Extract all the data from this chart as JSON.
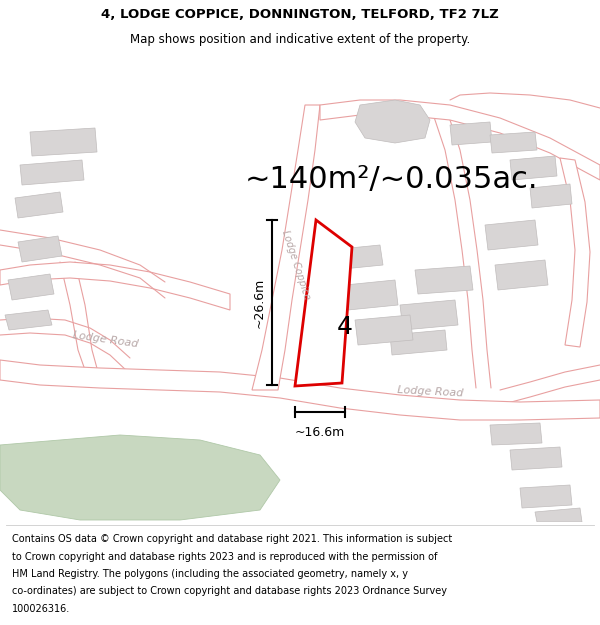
{
  "title_line1": "4, LODGE COPPICE, DONNINGTON, TELFORD, TF2 7LZ",
  "title_line2": "Map shows position and indicative extent of the property.",
  "area_text": "~140m²/~0.035ac.",
  "dim_height": "~26.6m",
  "dim_width": "~16.6m",
  "property_number": "4",
  "footer_lines": [
    "Contains OS data © Crown copyright and database right 2021. This information is subject",
    "to Crown copyright and database rights 2023 and is reproduced with the permission of",
    "HM Land Registry. The polygons (including the associated geometry, namely x, y",
    "co-ordinates) are subject to Crown copyright and database rights 2023 Ordnance Survey",
    "100026316."
  ],
  "map_bg": "#f7f2f2",
  "road_color": "#e8a0a0",
  "road_fill": "#ffffff",
  "plot_edge_color": "#dd0000",
  "plot_fill_color": "#ffffff",
  "building_color": "#d8d5d5",
  "building_edge": "#c0bcbc",
  "green_color": "#c8d8c0",
  "green_edge": "#b0c8a8",
  "title_fontsize": 9.5,
  "subtitle_fontsize": 8.5,
  "area_fontsize": 22,
  "dim_fontsize": 9,
  "number_fontsize": 18,
  "footer_fontsize": 7,
  "road_label_color": "#b8a8a8",
  "road_label_size": 8
}
